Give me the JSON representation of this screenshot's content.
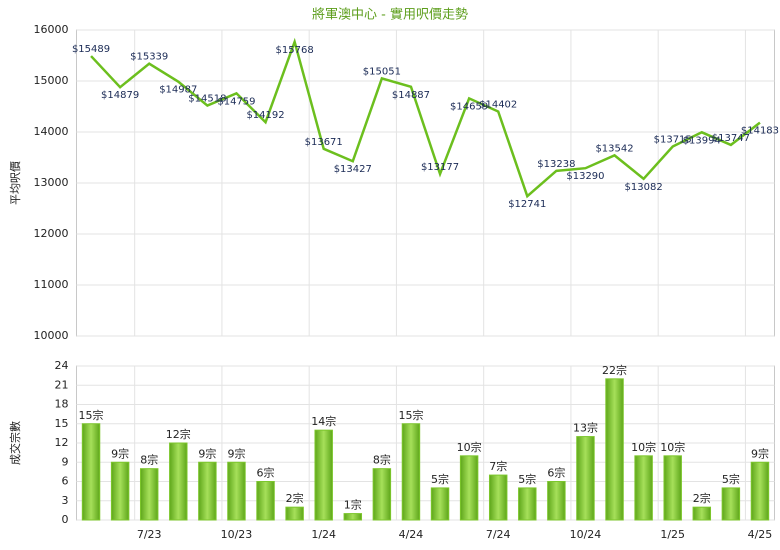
{
  "chart_data": [
    {
      "type": "line",
      "title": "將軍澳中心 - 實用呎價走勢",
      "ylabel": "平均呎價",
      "color": "#6cbf1e",
      "values": [
        15489,
        14879,
        15339,
        14987,
        14518,
        14759,
        14192,
        15768,
        13671,
        13427,
        15051,
        14887,
        13177,
        14659,
        14402,
        12741,
        13238,
        13290,
        13542,
        13082,
        13715,
        13994,
        13747,
        14183
      ],
      "value_labels": [
        "$15489",
        "$14879",
        "$15339",
        "$14987",
        "$14518",
        "$14759",
        "$14192",
        "$15768",
        "$13671",
        "$13427",
        "$15051",
        "$14887",
        "$13177",
        "$14659",
        "$14402",
        "$12741",
        "$13238",
        "$13290",
        "$13542",
        "$13082",
        "$13715",
        "$13994",
        "$13747",
        "$14183"
      ],
      "ylim": [
        10000,
        16000
      ],
      "yticks": [
        10000,
        11000,
        12000,
        13000,
        14000,
        15000,
        16000
      ],
      "grid": true
    },
    {
      "type": "bar",
      "ylabel": "成交宗數",
      "color": "#7cc62c",
      "categories": [
        null,
        null,
        "7/23",
        null,
        null,
        "10/23",
        null,
        null,
        "1/24",
        null,
        null,
        "4/24",
        null,
        null,
        "7/24",
        null,
        null,
        "10/24",
        null,
        null,
        "1/25",
        null,
        null,
        "4/25"
      ],
      "values": [
        15,
        9,
        8,
        12,
        9,
        9,
        6,
        2,
        14,
        1,
        8,
        15,
        5,
        10,
        7,
        5,
        6,
        13,
        22,
        10,
        10,
        2,
        5,
        9
      ],
      "value_labels": [
        "15宗",
        "9宗",
        "8宗",
        "12宗",
        "9宗",
        "9宗",
        "6宗",
        "2宗",
        "14宗",
        "1宗",
        "8宗",
        "15宗",
        "5宗",
        "10宗",
        "7宗",
        "5宗",
        "6宗",
        "13宗",
        "22宗",
        "10宗",
        "10宗",
        "2宗",
        "5宗",
        "9宗"
      ],
      "ylim": [
        0,
        24
      ],
      "yticks": [
        0,
        3,
        6,
        9,
        12,
        15,
        18,
        21,
        24
      ],
      "grid": true
    }
  ]
}
